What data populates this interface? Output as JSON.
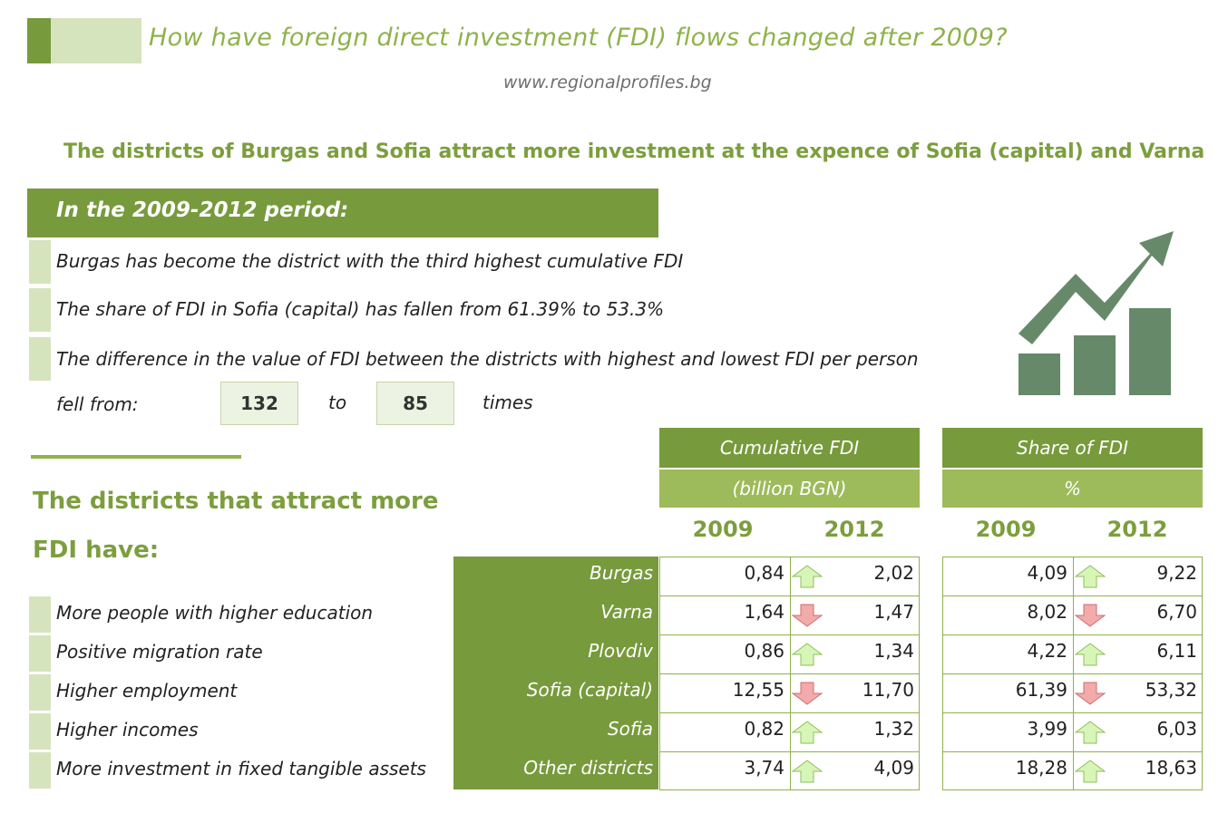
{
  "header": {
    "title": "How have foreign direct investment (FDI) flows changed after 2009?",
    "website": "www.regionalprofiles.bg",
    "subtitle": "The districts of Burgas and Sofia attract more investment at the expence of Sofia (capital) and Varna"
  },
  "period": {
    "heading": "In the 2009-2012 period:",
    "bullets": [
      "Burgas has become the district with the third highest cumulative FDI",
      "The share of FDI in Sofia (capital) has fallen from 61.39% to 53.3%",
      "The difference in the value of FDI between the districts with highest and lowest FDI per person"
    ],
    "fell_from": "fell from:",
    "from_value": "132",
    "to_word": "to",
    "to_value": "85",
    "times_word": "times"
  },
  "attract": {
    "heading_line1": "The districts that attract more",
    "heading_line2": "FDI have:",
    "bullets": [
      "More people with higher education",
      "Positive migration rate",
      "Higher employment",
      "Higher incomes",
      "More investment in fixed tangible assets"
    ]
  },
  "colors": {
    "dark_green": "#779a3c",
    "mid_green": "#9dbb5b",
    "light_green": "#d6e4bd",
    "arrow_up": "#d8f5b8",
    "arrow_down": "#f2aaaa",
    "icon": "#66896a"
  },
  "icons": [
    "trend-up-chart-icon",
    "arrow-up-icon",
    "arrow-down-icon"
  ],
  "chart_data": [
    {
      "type": "table",
      "title": "Cumulative FDI",
      "subtitle": "(billion BGN)",
      "columns": [
        "2009",
        "2012"
      ],
      "rows": [
        "Burgas",
        "Varna",
        "Plovdiv",
        "Sofia (capital)",
        "Sofia",
        "Other districts"
      ],
      "values_2009": [
        "0,84",
        "1,64",
        "0,86",
        "12,55",
        "0,82",
        "3,74"
      ],
      "values_2012": [
        "2,02",
        "1,47",
        "1,34",
        "11,70",
        "1,32",
        "4,09"
      ],
      "trend": [
        "up",
        "down",
        "up",
        "down",
        "up",
        "up"
      ]
    },
    {
      "type": "table",
      "title": "Share of FDI",
      "subtitle": "%",
      "columns": [
        "2009",
        "2012"
      ],
      "rows": [
        "Burgas",
        "Varna",
        "Plovdiv",
        "Sofia (capital)",
        "Sofia",
        "Other districts"
      ],
      "values_2009": [
        "4,09",
        "8,02",
        "4,22",
        "61,39",
        "3,99",
        "18,28"
      ],
      "values_2012": [
        "9,22",
        "6,70",
        "6,11",
        "53,32",
        "6,03",
        "18,63"
      ],
      "trend": [
        "up",
        "down",
        "up",
        "down",
        "up",
        "up"
      ]
    }
  ]
}
